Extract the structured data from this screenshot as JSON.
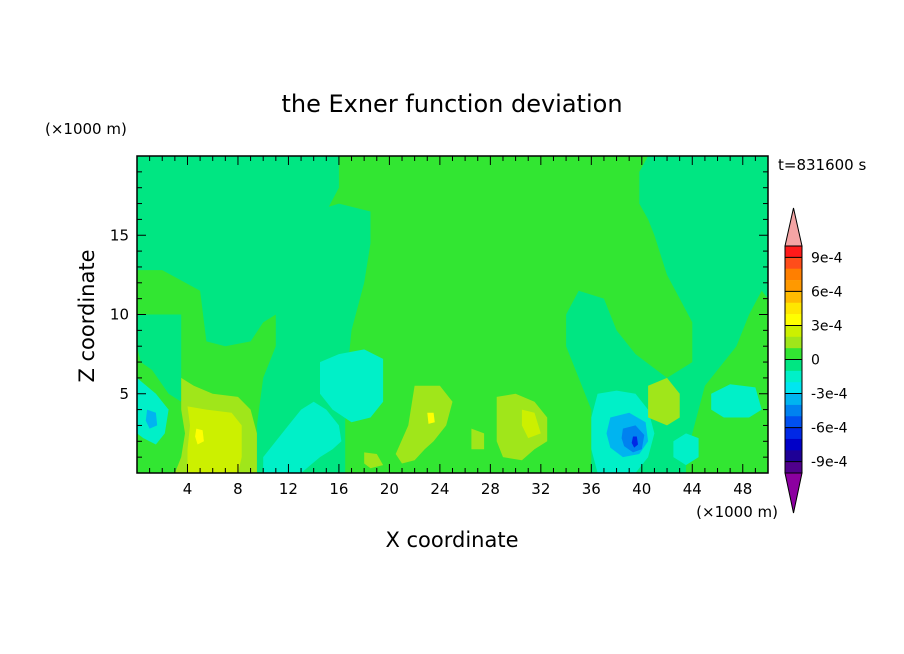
{
  "chart_data": {
    "type": "heatmap",
    "title": "the Exner function deviation",
    "xlabel": "X coordinate",
    "ylabel": "Z coordinate",
    "x_unit": "(×1000 m)",
    "y_unit": "(×1000 m)",
    "time_label": "t=831600 s",
    "xlim": [
      0,
      50
    ],
    "ylim": [
      0,
      20
    ],
    "x_ticks": [
      4,
      8,
      12,
      16,
      20,
      24,
      28,
      32,
      36,
      40,
      44,
      48
    ],
    "y_ticks": [
      5,
      10,
      15
    ],
    "colorbar": {
      "label_values": [
        0.0009,
        0.0006,
        0.0003,
        0,
        -0.0003,
        -0.0006,
        -0.0009
      ],
      "labels": [
        "9e-4",
        "6e-4",
        "3e-4",
        "0",
        "-3e-4",
        "-6e-4",
        "-9e-4"
      ],
      "levels": [
        {
          "min": 0.0009,
          "max": 0.001,
          "color": "#ff1a1a"
        },
        {
          "min": 0.0008,
          "max": 0.0009,
          "color": "#ff4d1a"
        },
        {
          "min": 0.0007,
          "max": 0.0008,
          "color": "#ff7f00"
        },
        {
          "min": 0.0006,
          "max": 0.0007,
          "color": "#ff9900"
        },
        {
          "min": 0.0005,
          "max": 0.0006,
          "color": "#ffbb00"
        },
        {
          "min": 0.0004,
          "max": 0.0005,
          "color": "#ffe600"
        },
        {
          "min": 0.0003,
          "max": 0.0004,
          "color": "#ffff00"
        },
        {
          "min": 0.0002,
          "max": 0.0003,
          "color": "#ccf000"
        },
        {
          "min": 0.0001,
          "max": 0.0002,
          "color": "#a0e61a"
        },
        {
          "min": 0,
          "max": 0.0001,
          "color": "#32e632"
        },
        {
          "min": -0.0001,
          "max": 0,
          "color": "#00e682"
        },
        {
          "min": -0.0002,
          "max": -0.0001,
          "color": "#00f0c8"
        },
        {
          "min": -0.0003,
          "max": -0.0002,
          "color": "#00e6f0"
        },
        {
          "min": -0.0004,
          "max": -0.0003,
          "color": "#00b4f0"
        },
        {
          "min": -0.0005,
          "max": -0.0004,
          "color": "#0082f0"
        },
        {
          "min": -0.0006,
          "max": -0.0005,
          "color": "#0050f0"
        },
        {
          "min": -0.0007,
          "max": -0.0006,
          "color": "#0028e6"
        },
        {
          "min": -0.0008,
          "max": -0.0007,
          "color": "#0000c8"
        },
        {
          "min": -0.0009,
          "max": -0.0008,
          "color": "#1e0096"
        },
        {
          "min": -0.001,
          "max": -0.0009,
          "color": "#50008c"
        }
      ],
      "over_color": "#f4a4a4",
      "under_color": "#8c00a0"
    },
    "regions": [
      {
        "value": -5e-05,
        "points": [
          [
            0,
            20
          ],
          [
            50,
            20
          ],
          [
            50,
            0
          ],
          [
            0,
            0
          ]
        ]
      },
      {
        "value": 5e-05,
        "points": [
          [
            16,
            20
          ],
          [
            40.5,
            20
          ],
          [
            39.8,
            19
          ],
          [
            39.8,
            17
          ],
          [
            40.5,
            16
          ],
          [
            41,
            15
          ],
          [
            42,
            12.5
          ],
          [
            43,
            11
          ],
          [
            44,
            9.5
          ],
          [
            44,
            7
          ],
          [
            42,
            6
          ],
          [
            39.5,
            7.5
          ],
          [
            38,
            9
          ],
          [
            37,
            11
          ],
          [
            35,
            11.5
          ],
          [
            34,
            10
          ],
          [
            34,
            8
          ],
          [
            35,
            6
          ],
          [
            36,
            4
          ],
          [
            36,
            0
          ],
          [
            16.5,
            0
          ],
          [
            16.5,
            5
          ],
          [
            17,
            9
          ],
          [
            18,
            12
          ],
          [
            18.5,
            14.5
          ],
          [
            18.5,
            16.5
          ],
          [
            16,
            17
          ],
          [
            15.2,
            16.8
          ],
          [
            16,
            18
          ],
          [
            16,
            20
          ]
        ]
      },
      {
        "value": 5e-05,
        "points": [
          [
            0,
            12.8
          ],
          [
            2,
            12.8
          ],
          [
            5,
            11.5
          ],
          [
            5.5,
            8.3
          ],
          [
            7,
            8
          ],
          [
            9,
            8.3
          ],
          [
            10,
            9.5
          ],
          [
            11,
            10
          ],
          [
            11,
            8
          ],
          [
            10,
            6
          ],
          [
            9.5,
            3
          ],
          [
            9.5,
            0
          ],
          [
            0,
            0
          ],
          [
            0,
            8
          ],
          [
            0.3,
            7
          ],
          [
            1.2,
            6.5
          ],
          [
            2.5,
            5
          ],
          [
            3.5,
            4.5
          ],
          [
            3.5,
            10
          ],
          [
            0,
            10
          ]
        ]
      },
      {
        "value": 5e-05,
        "points": [
          [
            49.5,
            11.5
          ],
          [
            48.5,
            10
          ],
          [
            47.5,
            8
          ],
          [
            46,
            6.5
          ],
          [
            45,
            5.5
          ],
          [
            44.5,
            4
          ],
          [
            44,
            2.5
          ],
          [
            43.5,
            1
          ],
          [
            43.5,
            0
          ],
          [
            50,
            0
          ],
          [
            50,
            11
          ]
        ]
      },
      {
        "value": -0.00015,
        "points": [
          [
            0,
            6
          ],
          [
            1.5,
            5
          ],
          [
            2.5,
            4
          ],
          [
            2.2,
            2.5
          ],
          [
            1.5,
            1.8
          ],
          [
            0.5,
            2.2
          ],
          [
            0,
            2.5
          ]
        ]
      },
      {
        "value": -0.00015,
        "points": [
          [
            14,
            4.5
          ],
          [
            15,
            4
          ],
          [
            16,
            3
          ],
          [
            16.2,
            2
          ],
          [
            15.5,
            1.5
          ],
          [
            14.5,
            1
          ],
          [
            13,
            0
          ],
          [
            10,
            0
          ],
          [
            10,
            1
          ],
          [
            11,
            2
          ],
          [
            12,
            3
          ],
          [
            13,
            4
          ]
        ]
      },
      {
        "value": -0.00015,
        "points": [
          [
            14.5,
            7
          ],
          [
            16,
            7.5
          ],
          [
            18,
            7.8
          ],
          [
            19.5,
            7.2
          ],
          [
            19.5,
            4.5
          ],
          [
            18.5,
            3.5
          ],
          [
            17,
            3.2
          ],
          [
            15.5,
            4
          ],
          [
            14.5,
            5
          ]
        ]
      },
      {
        "value": -0.00015,
        "points": [
          [
            36.5,
            5
          ],
          [
            38,
            5.2
          ],
          [
            39.5,
            5
          ],
          [
            40.5,
            4
          ],
          [
            41,
            2.5
          ],
          [
            40.5,
            1
          ],
          [
            39.5,
            0
          ],
          [
            36.5,
            0
          ],
          [
            36,
            1.5
          ],
          [
            36,
            3.5
          ]
        ]
      },
      {
        "value": -0.00015,
        "points": [
          [
            45.5,
            5
          ],
          [
            47,
            5.6
          ],
          [
            49,
            5.4
          ],
          [
            49.5,
            4
          ],
          [
            48.5,
            3.5
          ],
          [
            46.5,
            3.5
          ],
          [
            45.5,
            4
          ]
        ]
      },
      {
        "value": -0.00015,
        "points": [
          [
            43.5,
            2.5
          ],
          [
            44.5,
            2.2
          ],
          [
            44.5,
            1
          ],
          [
            43.5,
            0.5
          ],
          [
            42.5,
            1
          ],
          [
            42.5,
            2
          ]
        ]
      },
      {
        "value": 0.00015,
        "points": [
          [
            3.5,
            6
          ],
          [
            4.5,
            5.5
          ],
          [
            6,
            5
          ],
          [
            8,
            4.8
          ],
          [
            9,
            4
          ],
          [
            9.5,
            2.5
          ],
          [
            9.5,
            0
          ],
          [
            3,
            0
          ],
          [
            3.5,
            1
          ],
          [
            3.8,
            2.5
          ],
          [
            3.5,
            4
          ]
        ]
      },
      {
        "value": 0.00015,
        "points": [
          [
            22,
            5.5
          ],
          [
            24,
            5.5
          ],
          [
            25,
            4.5
          ],
          [
            24.5,
            3
          ],
          [
            23.5,
            2
          ],
          [
            22.8,
            1.5
          ],
          [
            22,
            0.8
          ],
          [
            21,
            0.6
          ],
          [
            20.5,
            1.2
          ],
          [
            21.5,
            3
          ]
        ]
      },
      {
        "value": 0.00015,
        "points": [
          [
            28.5,
            4.8
          ],
          [
            30,
            5
          ],
          [
            31.5,
            4.5
          ],
          [
            32.5,
            3.5
          ],
          [
            32.5,
            2
          ],
          [
            31.5,
            1.5
          ],
          [
            30.5,
            0.8
          ],
          [
            29,
            1
          ],
          [
            28.5,
            2
          ]
        ]
      },
      {
        "value": 0.00015,
        "points": [
          [
            40.5,
            5.5
          ],
          [
            42,
            6
          ],
          [
            43,
            5
          ],
          [
            43,
            3.5
          ],
          [
            42,
            3
          ],
          [
            40.5,
            3.5
          ]
        ]
      },
      {
        "value": 0.00015,
        "points": [
          [
            18,
            1.3
          ],
          [
            19,
            1.2
          ],
          [
            19.5,
            0.5
          ],
          [
            18.5,
            0.3
          ],
          [
            18,
            0.6
          ]
        ]
      },
      {
        "value": 0.00015,
        "points": [
          [
            26.5,
            2.8
          ],
          [
            27.5,
            2.5
          ],
          [
            27.5,
            1.5
          ],
          [
            26.5,
            1.5
          ]
        ]
      },
      {
        "value": 0.00025,
        "points": [
          [
            4,
            4.2
          ],
          [
            5.5,
            4
          ],
          [
            7.5,
            3.8
          ],
          [
            8.3,
            3
          ],
          [
            8.3,
            1
          ],
          [
            8,
            0
          ],
          [
            4,
            0
          ],
          [
            4,
            1.5
          ],
          [
            4.2,
            3
          ]
        ]
      },
      {
        "value": 0.00025,
        "points": [
          [
            30.5,
            4
          ],
          [
            31.5,
            3.8
          ],
          [
            32,
            2.5
          ],
          [
            31,
            2.2
          ],
          [
            30.5,
            3
          ]
        ]
      },
      {
        "value": 0.00035,
        "points": [
          [
            4.7,
            2.8
          ],
          [
            5.2,
            2.7
          ],
          [
            5.3,
            2
          ],
          [
            4.8,
            1.8
          ],
          [
            4.6,
            2.3
          ]
        ]
      },
      {
        "value": 0.00035,
        "points": [
          [
            23,
            3.8
          ],
          [
            23.5,
            3.8
          ],
          [
            23.6,
            3.2
          ],
          [
            23.1,
            3.1
          ]
        ]
      },
      {
        "value": -0.00035,
        "points": [
          [
            0.8,
            4
          ],
          [
            1.5,
            3.8
          ],
          [
            1.6,
            3
          ],
          [
            1,
            2.8
          ],
          [
            0.7,
            3.3
          ]
        ]
      },
      {
        "value": -0.00035,
        "points": [
          [
            37.5,
            3.5
          ],
          [
            39,
            3.8
          ],
          [
            40.3,
            3.2
          ],
          [
            40.5,
            2
          ],
          [
            39.8,
            1.2
          ],
          [
            38.5,
            1
          ],
          [
            37.5,
            1.6
          ],
          [
            37.2,
            2.5
          ]
        ]
      },
      {
        "value": -0.00045,
        "points": [
          [
            38.5,
            2.8
          ],
          [
            39.5,
            3
          ],
          [
            40.2,
            2.4
          ],
          [
            40,
            1.5
          ],
          [
            39.3,
            1.3
          ],
          [
            38.6,
            1.7
          ],
          [
            38.4,
            2.2
          ]
        ]
      },
      {
        "value": -0.00065,
        "points": [
          [
            39.3,
            2.3
          ],
          [
            39.6,
            2.3
          ],
          [
            39.7,
            1.8
          ],
          [
            39.4,
            1.6
          ],
          [
            39.2,
            1.9
          ]
        ]
      }
    ]
  }
}
